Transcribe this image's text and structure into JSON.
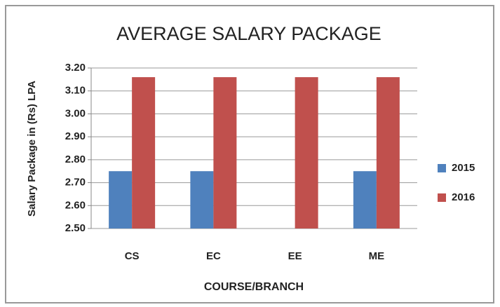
{
  "chart_data": {
    "type": "bar",
    "title": "AVERAGE SALARY PACKAGE",
    "x_label": "COURSE/BRANCH",
    "y_label": "Salary Package in (Rs) LPA",
    "categories": [
      "CS",
      "EC",
      "EE",
      "ME"
    ],
    "series": [
      {
        "name": "2015",
        "color": "#4f81bd",
        "values": [
          2.75,
          2.75,
          null,
          2.75
        ]
      },
      {
        "name": "2016",
        "color": "#c0504d",
        "values": [
          3.16,
          3.16,
          3.16,
          3.16
        ]
      }
    ],
    "ylim": [
      2.5,
      3.2
    ],
    "yticks": [
      {
        "value": 2.5,
        "label": "2.50"
      },
      {
        "value": 2.6,
        "label": "2.60"
      },
      {
        "value": 2.7,
        "label": "2.70"
      },
      {
        "value": 2.8,
        "label": "2.80"
      },
      {
        "value": 2.9,
        "label": "2.90"
      },
      {
        "value": 3.0,
        "label": "3.00"
      },
      {
        "value": 3.1,
        "label": "3.10"
      },
      {
        "value": 3.2,
        "label": "3.20"
      }
    ],
    "grid": true,
    "legend": "right"
  }
}
